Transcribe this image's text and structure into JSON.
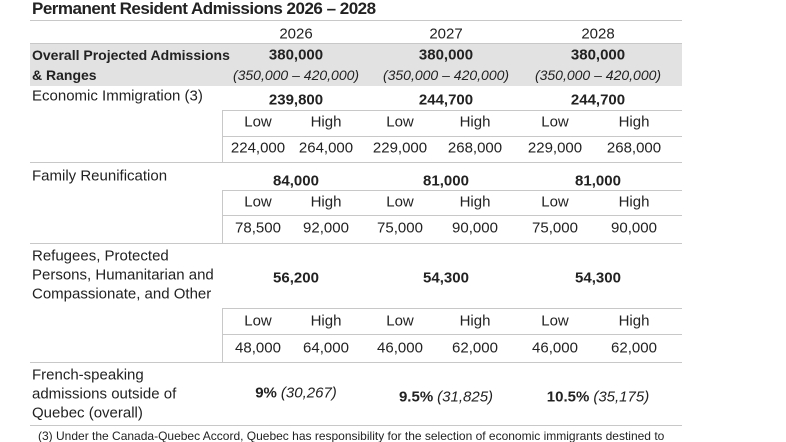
{
  "title": "Permanent Resident Admissions 2026 – 2028",
  "columns": [
    "2026",
    "2027",
    "2028"
  ],
  "sub_headers": [
    "Low",
    "High"
  ],
  "overall": {
    "label_lines": [
      "Overall Projected Admissions",
      "& Ranges"
    ],
    "totals": [
      "380,000",
      "380,000",
      "380,000"
    ],
    "ranges": [
      "(350,000 – 420,000)",
      "(350,000 – 420,000)",
      "(350,000 – 420,000)"
    ]
  },
  "categories": [
    {
      "label_lines": [
        "Economic Immigration (3)"
      ],
      "totals": [
        "239,800",
        "244,700",
        "244,700"
      ],
      "ranges": [
        [
          "224,000",
          "264,000"
        ],
        [
          "229,000",
          "268,000"
        ],
        [
          "229,000",
          "268,000"
        ]
      ]
    },
    {
      "label_lines": [
        "Family Reunification"
      ],
      "totals": [
        "84,000",
        "81,000",
        "81,000"
      ],
      "ranges": [
        [
          "78,500",
          "92,000"
        ],
        [
          "75,000",
          "90,000"
        ],
        [
          "75,000",
          "90,000"
        ]
      ]
    },
    {
      "label_lines": [
        "Refugees, Protected",
        "Persons, Humanitarian and",
        "Compassionate, and Other"
      ],
      "totals": [
        "56,200",
        "54,300",
        "54,300"
      ],
      "ranges": [
        [
          "48,000",
          "64,000"
        ],
        [
          "46,000",
          "62,000"
        ],
        [
          "46,000",
          "62,000"
        ]
      ]
    }
  ],
  "french": {
    "label_lines": [
      "French-speaking",
      "admissions outside of",
      "Quebec (overall)"
    ],
    "values": [
      {
        "pct": "9%",
        "count": "(30,267)"
      },
      {
        "pct": "9.5%",
        "count": "(31,825)"
      },
      {
        "pct": "10.5%",
        "count": "(35,175)"
      }
    ]
  },
  "footnote": "(3) Under the Canada-Quebec Accord, Quebec has responsibility for the selection of economic immigrants destined to"
}
